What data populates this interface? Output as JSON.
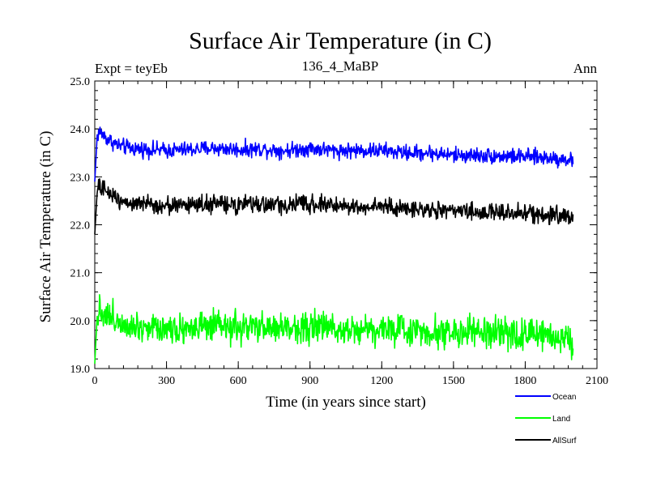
{
  "chart_data": {
    "type": "line",
    "title": "Surface Air Temperature (in C)",
    "subtitle_left": "Expt = teyEb",
    "subtitle_center": "136_4_MaBP",
    "subtitle_right": "Ann",
    "xlabel": "Time (in years since start)",
    "ylabel": "Surface Air Temperature (in C)",
    "xlim": [
      0,
      2100
    ],
    "ylim": [
      19.0,
      25.0
    ],
    "x_ticks": [
      "0",
      "300",
      "600",
      "900",
      "1200",
      "1500",
      "1800",
      "2100"
    ],
    "y_ticks": [
      "19.0",
      "20.0",
      "21.0",
      "22.0",
      "23.0",
      "24.0",
      "25.0"
    ],
    "series": [
      {
        "name": "Ocean",
        "color": "#0000ff",
        "years": [
          0,
          10,
          20,
          30,
          50,
          100,
          150,
          200,
          300,
          400,
          500,
          600,
          700,
          800,
          900,
          1000,
          1100,
          1200,
          1300,
          1400,
          1500,
          1600,
          1700,
          1800,
          1900,
          2000
        ],
        "values": [
          22.9,
          23.85,
          23.95,
          23.9,
          23.8,
          23.65,
          23.6,
          23.58,
          23.55,
          23.57,
          23.6,
          23.57,
          23.58,
          23.55,
          23.6,
          23.55,
          23.55,
          23.55,
          23.5,
          23.5,
          23.45,
          23.45,
          23.43,
          23.42,
          23.4,
          23.35
        ],
        "noise": 0.08
      },
      {
        "name": "Land",
        "color": "#00ff00",
        "years": [
          0,
          10,
          20,
          30,
          50,
          100,
          150,
          200,
          300,
          400,
          500,
          600,
          700,
          800,
          900,
          1000,
          1100,
          1200,
          1300,
          1400,
          1500,
          1600,
          1700,
          1800,
          1900,
          2000
        ],
        "values": [
          19.1,
          20.1,
          20.25,
          20.2,
          20.1,
          20.0,
          19.92,
          19.88,
          19.85,
          19.85,
          19.86,
          19.84,
          19.85,
          19.84,
          19.88,
          19.85,
          19.83,
          19.82,
          19.8,
          19.78,
          19.76,
          19.74,
          19.72,
          19.7,
          19.7,
          19.6
        ],
        "noise": 0.16
      },
      {
        "name": "AllSurf",
        "color": "#000000",
        "years": [
          0,
          10,
          20,
          30,
          50,
          100,
          150,
          200,
          300,
          400,
          500,
          600,
          700,
          800,
          900,
          1000,
          1100,
          1200,
          1300,
          1400,
          1500,
          1600,
          1700,
          1800,
          1900,
          2000
        ],
        "values": [
          21.8,
          22.7,
          22.8,
          22.75,
          22.7,
          22.55,
          22.45,
          22.42,
          22.4,
          22.42,
          22.44,
          22.4,
          22.43,
          22.4,
          22.45,
          22.4,
          22.38,
          22.38,
          22.33,
          22.32,
          22.28,
          22.27,
          22.25,
          22.24,
          22.22,
          22.15
        ],
        "noise": 0.09
      }
    ],
    "legend": [
      "Ocean",
      "Land",
      "AllSurf"
    ],
    "legend_position": "below-right"
  }
}
